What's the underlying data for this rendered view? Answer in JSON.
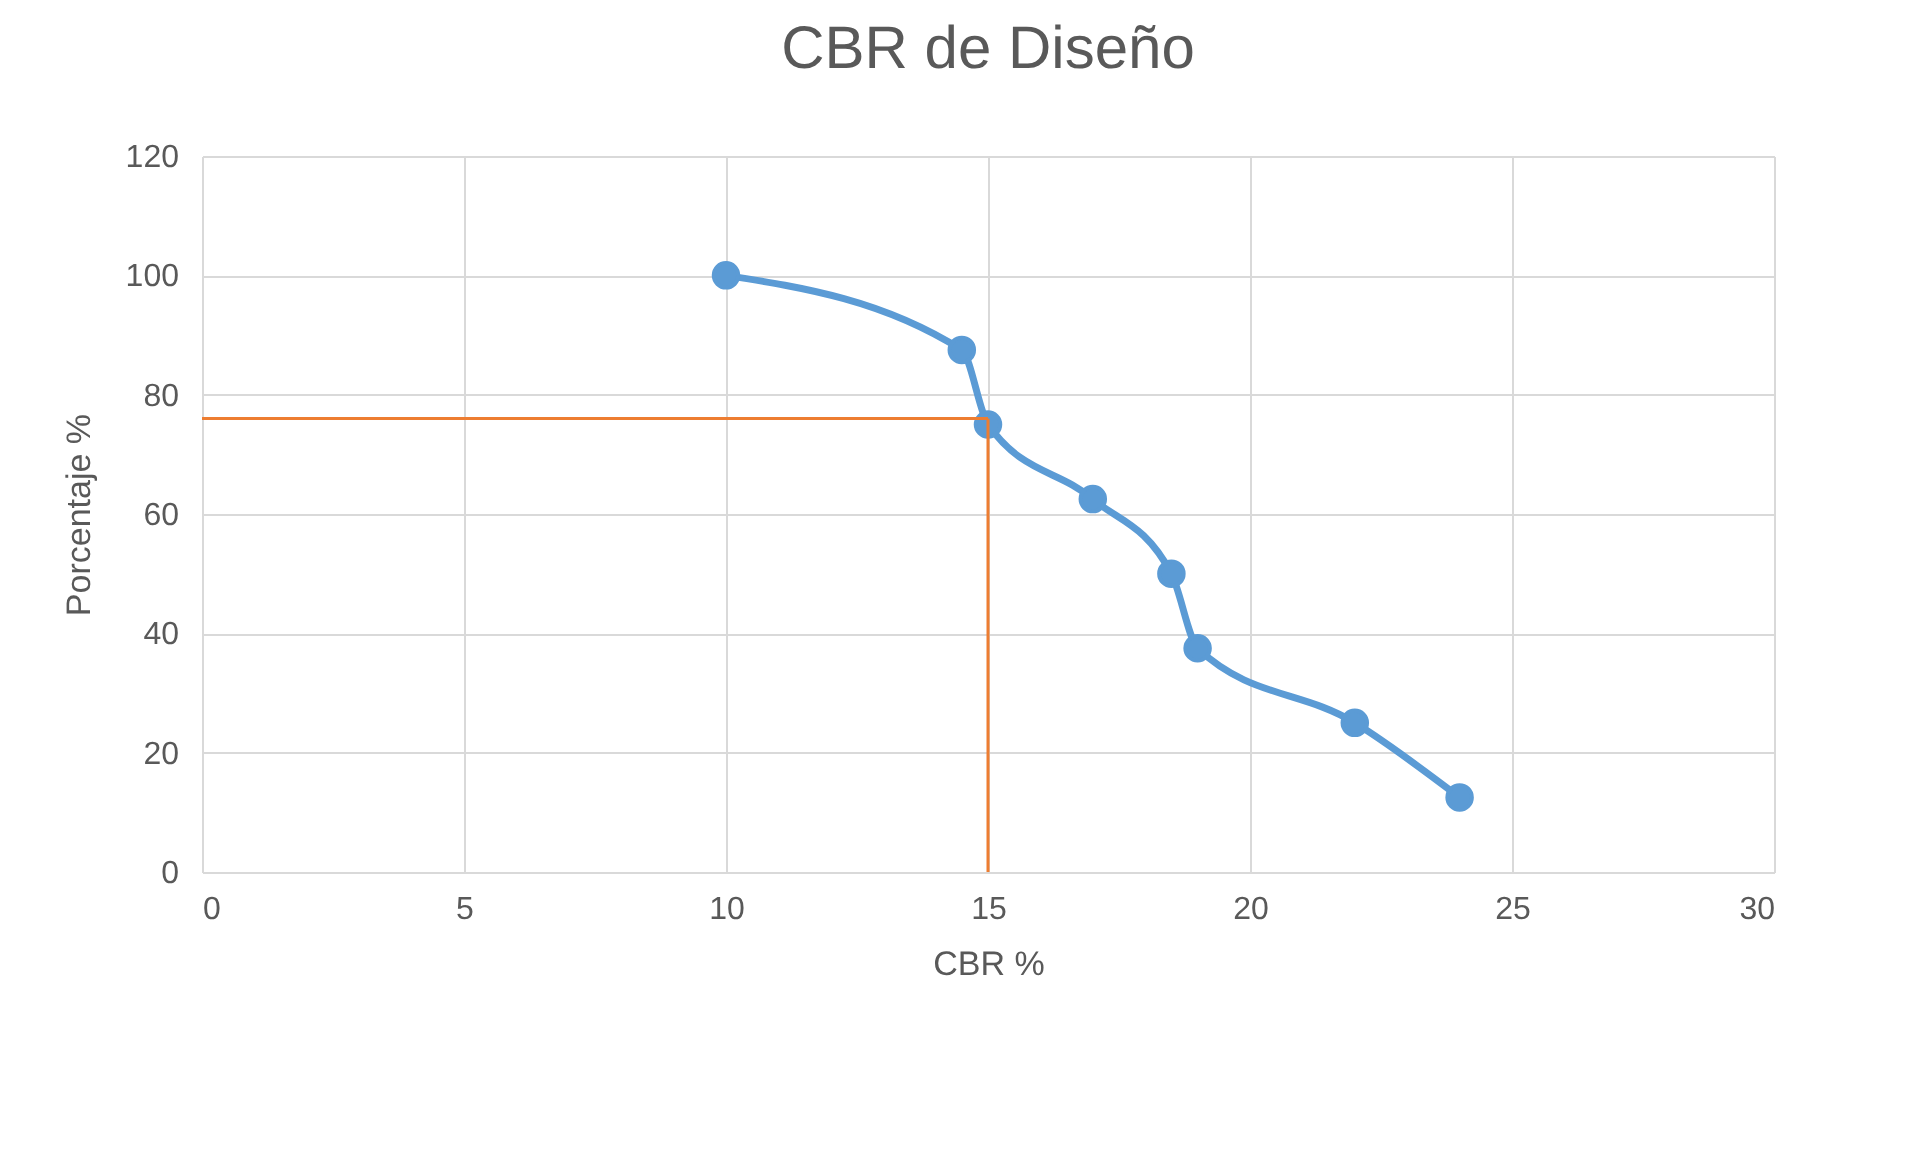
{
  "chart_data": {
    "type": "line",
    "title": "CBR de Diseño",
    "xlabel": "CBR %",
    "ylabel": "Porcentaje %",
    "x": [
      10,
      14.5,
      15,
      17,
      18.5,
      19,
      22,
      24
    ],
    "series": [
      {
        "color": "#5b9bd5",
        "values": [
          100,
          87.5,
          75,
          62.5,
          50,
          37.5,
          25,
          12.5
        ]
      }
    ],
    "xlim": [
      0,
      30
    ],
    "xticks": [
      0,
      5,
      10,
      15,
      20,
      25,
      30
    ],
    "ylim": [
      0,
      120
    ],
    "yticks": [
      0,
      20,
      40,
      60,
      80,
      100,
      120
    ],
    "ref_lines": [
      {
        "axis": "y",
        "value": 76,
        "color": "#ed7d31"
      },
      {
        "axis": "x",
        "value": 15,
        "color": "#ed7d31"
      }
    ],
    "grid": true,
    "marker": "circle",
    "line_style": "solid"
  }
}
